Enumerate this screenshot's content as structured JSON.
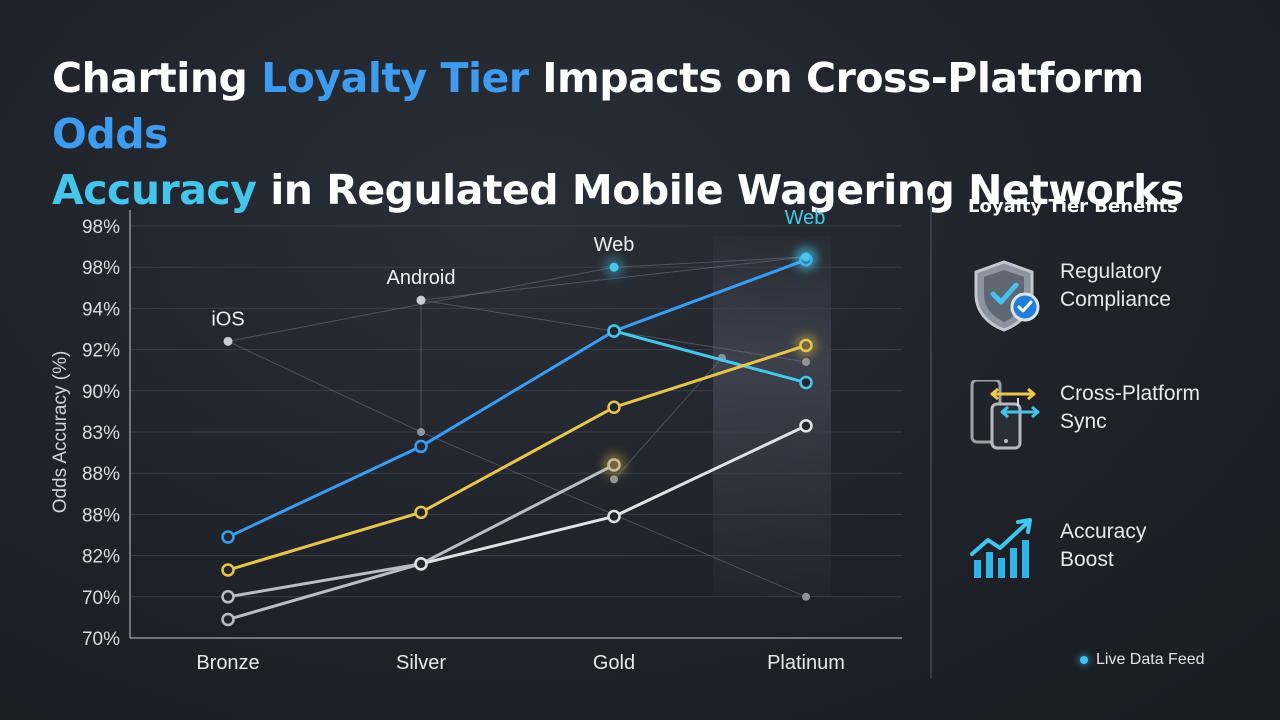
{
  "title": {
    "part1": "Charting ",
    "hl1": "Loyalty Tier",
    "part2": " Impacts on Cross-Platform ",
    "hl2": "Odds",
    "hl3": "Accuracy",
    "part3": " in Regulated Mobile Wagering Networks"
  },
  "sidebar": {
    "title": "Loyalty Tier Benefits",
    "benefits": [
      {
        "line1": "Regulatory",
        "line2": "Compliance",
        "icon": "shield-check-icon"
      },
      {
        "line1": "Cross-Platform",
        "line2": "Sync",
        "icon": "devices-sync-icon"
      },
      {
        "line1": "Accuracy",
        "line2": "Boost",
        "icon": "trend-up-icon"
      }
    ]
  },
  "live_feed": "Live Data Feed",
  "colors": {
    "blue": "#3a9cf0",
    "cyan": "#45c8ec",
    "yellow": "#e6c54e",
    "gray": "#b9bec6",
    "light": "#dfe2e7",
    "grid": "#3a3e47"
  },
  "chart_data": {
    "type": "line",
    "ylabel": "Odds Accuracy (%)",
    "xlabel": "",
    "categories": [
      "Bronze",
      "Silver",
      "Gold",
      "Platinum"
    ],
    "y_tick_labels": [
      "70%",
      "70%",
      "82%",
      "88%",
      "88%",
      "83%",
      "90%",
      "92%",
      "94%",
      "98%",
      "98%"
    ],
    "y_tick_values": [
      0,
      1,
      2,
      3,
      4,
      5,
      6,
      7,
      8,
      9,
      10
    ],
    "ylim": [
      0,
      10
    ],
    "grid": true,
    "series": [
      {
        "color": "#3a9cf0",
        "values": [
          2.45,
          4.65,
          7.45,
          9.18
        ]
      },
      {
        "color": "#45c8ec",
        "values": [
          null,
          null,
          7.45,
          6.2
        ]
      },
      {
        "color": "#e6c54e",
        "values": [
          1.65,
          3.05,
          5.6,
          7.1
        ]
      },
      {
        "color": "#b9bec6",
        "values": [
          0.45,
          1.8,
          4.2,
          null
        ]
      },
      {
        "color": "#b9bec6",
        "values": [
          1.0,
          1.8,
          null,
          null
        ]
      },
      {
        "color": "#dfe2e7",
        "values": [
          null,
          1.8,
          2.95,
          5.15
        ]
      }
    ],
    "platform_markers": [
      {
        "label": "iOS",
        "x": 0,
        "y": 7.2
      },
      {
        "label": "Android",
        "x": 1,
        "y": 8.2
      },
      {
        "label": "Web",
        "x": 2,
        "y": 9.0
      },
      {
        "label": "Web",
        "x": 3,
        "y": 9.25
      }
    ],
    "highlight_category": "Platinum"
  }
}
